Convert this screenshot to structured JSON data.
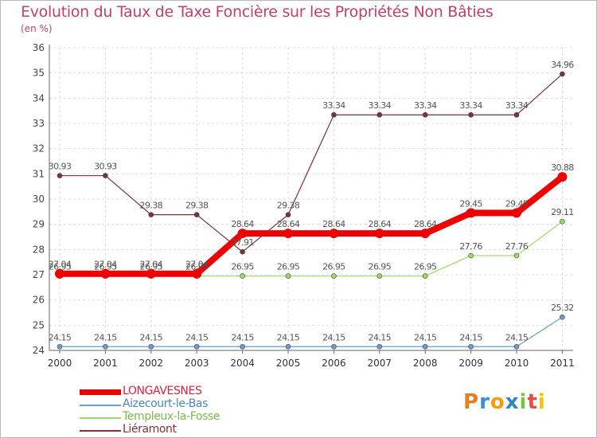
{
  "chart_data": {
    "type": "line",
    "title": "Evolution du Taux de Taxe Foncière sur les Propriétés Non Bâties",
    "unit_label": "(en %)",
    "xlabel": "",
    "ylabel": "",
    "ylim": [
      24,
      36
    ],
    "grid": true,
    "categories": [
      "2000",
      "2001",
      "2002",
      "2003",
      "2004",
      "2005",
      "2006",
      "2007",
      "2008",
      "2009",
      "2010",
      "2011"
    ],
    "y_ticks": [
      "24",
      "25",
      "26",
      "27",
      "28",
      "29",
      "30",
      "31",
      "32",
      "33",
      "34",
      "35",
      "36"
    ],
    "series": [
      {
        "name": "LONGAVESNES",
        "color": "#ee0000",
        "emphasis": "thick",
        "values": [
          27.04,
          27.04,
          27.04,
          27.04,
          28.64,
          28.64,
          28.64,
          28.64,
          28.64,
          29.45,
          29.45,
          30.88
        ],
        "labels": [
          "27.04",
          "27.04",
          "27.04",
          "27.04",
          "28.64",
          "28.64",
          "28.64",
          "28.64",
          "28.64",
          "29.45",
          "29.45",
          "30.88"
        ]
      },
      {
        "name": "Aizecourt-le-Bas",
        "color": "#6f9cc9",
        "emphasis": "thin",
        "values": [
          24.15,
          24.15,
          24.15,
          24.15,
          24.15,
          24.15,
          24.15,
          24.15,
          24.15,
          24.15,
          24.15,
          25.32
        ],
        "labels": [
          "24.15",
          "24.15",
          "24.15",
          "24.15",
          "24.15",
          "24.15",
          "24.15",
          "24.15",
          "24.15",
          "24.15",
          "24.15",
          "25.32"
        ]
      },
      {
        "name": "Templeux-la-Fosse",
        "color": "#99dd66",
        "emphasis": "thin",
        "values": [
          26.95,
          26.95,
          26.95,
          26.95,
          26.95,
          26.95,
          26.95,
          26.95,
          26.95,
          27.76,
          27.76,
          29.11
        ],
        "labels": [
          "26.95",
          "26.95",
          "26.95",
          "26.95",
          "26.95",
          "26.95",
          "26.95",
          "26.95",
          "26.95",
          "27.76",
          "27.76",
          "29.11"
        ]
      },
      {
        "name": "Liéramont",
        "color": "#7a3338",
        "emphasis": "thin",
        "values": [
          30.93,
          30.93,
          29.38,
          29.38,
          27.91,
          29.38,
          33.34,
          33.34,
          33.34,
          33.34,
          33.34,
          34.96
        ],
        "labels": [
          "30.93",
          "30.93",
          "29.38",
          "29.38",
          "27.91",
          "29.38",
          "33.34",
          "33.34",
          "33.34",
          "33.34",
          "33.34",
          "34.96"
        ]
      }
    ],
    "legend_position": "bottom-left"
  },
  "logo": {
    "letters": [
      "P",
      "r",
      "o",
      "x",
      "i",
      "t",
      "i"
    ],
    "colors": [
      "#e67e22",
      "#3a8fd0",
      "#f39c12",
      "#2e86c1",
      "#7fbf3f",
      "#e74c3c",
      "#f1c40f"
    ]
  }
}
